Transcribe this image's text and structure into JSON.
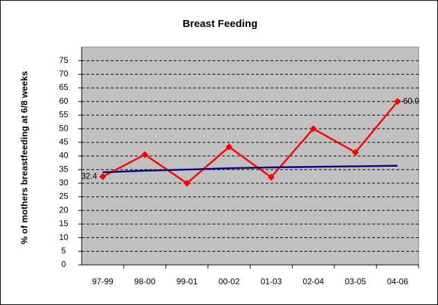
{
  "chart_data": {
    "type": "line",
    "title": "Breast Feeding",
    "y_label": "% of mothers breastfeeding at 6/8 weeks",
    "categories": [
      "97-99",
      "98-00",
      "99-01",
      "00-02",
      "01-03",
      "02-04",
      "03-05",
      "04-06"
    ],
    "series": [
      {
        "color": "#ff0000",
        "marker": "diamond",
        "values": [
          32.4,
          40.5,
          30,
          43.3,
          32.2,
          50,
          41.3,
          60.0
        ],
        "value_labels": [
          "32.4",
          null,
          null,
          null,
          null,
          null,
          null,
          "60.0"
        ]
      },
      {
        "color": "#000080",
        "values": [
          34.0,
          34.6,
          35.0,
          35.5,
          35.8,
          36.0,
          36.2,
          36.4
        ]
      }
    ],
    "ylim": [
      0,
      80
    ],
    "yticks": [
      0,
      5,
      10,
      15,
      20,
      25,
      30,
      35,
      40,
      45,
      50,
      55,
      60,
      65,
      70,
      75
    ],
    "grid": true,
    "plot_background": "#c0c0c0"
  }
}
